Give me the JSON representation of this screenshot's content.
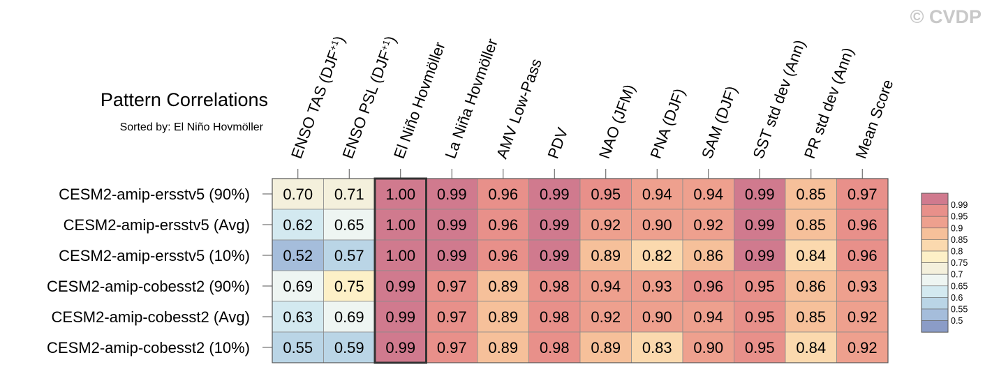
{
  "watermark": "© CVDP",
  "chart_data": {
    "type": "heatmap",
    "title": "Pattern Correlations",
    "subtitle": "Sorted by: El Niño Hovmöller",
    "columns": [
      {
        "pre": "ENSO TAS (DJF",
        "sup": "+1",
        "post": ")"
      },
      {
        "pre": "ENSO PSL (DJF",
        "sup": "+1",
        "post": ")"
      },
      {
        "pre": "El Niño Hovmöller",
        "sup": "",
        "post": ""
      },
      {
        "pre": "La Niña Hovmöller",
        "sup": "",
        "post": ""
      },
      {
        "pre": "AMV Low-Pass",
        "sup": "",
        "post": ""
      },
      {
        "pre": "PDV",
        "sup": "",
        "post": ""
      },
      {
        "pre": "NAO (JFM)",
        "sup": "",
        "post": ""
      },
      {
        "pre": "PNA (DJF)",
        "sup": "",
        "post": ""
      },
      {
        "pre": "SAM (DJF)",
        "sup": "",
        "post": ""
      },
      {
        "pre": "SST std dev (Ann)",
        "sup": "",
        "post": ""
      },
      {
        "pre": "PR std dev (Ann)",
        "sup": "",
        "post": ""
      },
      {
        "pre": "Mean Score",
        "sup": "",
        "post": ""
      }
    ],
    "rows": [
      "CESM2-amip-ersstv5 (90%)",
      "CESM2-amip-ersstv5 (Avg)",
      "CESM2-amip-ersstv5 (10%)",
      "CESM2-amip-cobesst2 (90%)",
      "CESM2-amip-cobesst2 (Avg)",
      "CESM2-amip-cobesst2 (10%)"
    ],
    "values": [
      [
        0.7,
        0.71,
        1.0,
        0.99,
        0.96,
        0.99,
        0.95,
        0.94,
        0.94,
        0.99,
        0.85,
        0.97
      ],
      [
        0.62,
        0.65,
        1.0,
        0.99,
        0.96,
        0.99,
        0.92,
        0.9,
        0.92,
        0.99,
        0.85,
        0.96
      ],
      [
        0.52,
        0.57,
        1.0,
        0.99,
        0.96,
        0.99,
        0.89,
        0.82,
        0.86,
        0.99,
        0.84,
        0.96
      ],
      [
        0.69,
        0.75,
        0.99,
        0.97,
        0.89,
        0.98,
        0.94,
        0.93,
        0.96,
        0.95,
        0.86,
        0.93
      ],
      [
        0.63,
        0.69,
        0.99,
        0.97,
        0.89,
        0.98,
        0.92,
        0.9,
        0.94,
        0.95,
        0.85,
        0.92
      ],
      [
        0.55,
        0.59,
        0.99,
        0.97,
        0.89,
        0.98,
        0.89,
        0.83,
        0.9,
        0.95,
        0.84,
        0.92
      ]
    ],
    "highlighted_column": 2,
    "colorbar": {
      "levels": [
        0.5,
        0.55,
        0.6,
        0.65,
        0.7,
        0.75,
        0.8,
        0.85,
        0.9,
        0.95,
        0.99
      ],
      "labels": [
        "0.99",
        "0.95",
        "0.9",
        "0.85",
        "0.8",
        "0.75",
        "0.7",
        "0.65",
        "0.6",
        "0.55",
        "0.5"
      ],
      "colors": [
        "#8b9cc7",
        "#a5bddb",
        "#bad5e6",
        "#d3e9f0",
        "#eef5f2",
        "#f4f0dc",
        "#fdf0c7",
        "#fbd9ae",
        "#f6c09a",
        "#eea08e",
        "#e8908a",
        "#d07a8e"
      ]
    }
  }
}
